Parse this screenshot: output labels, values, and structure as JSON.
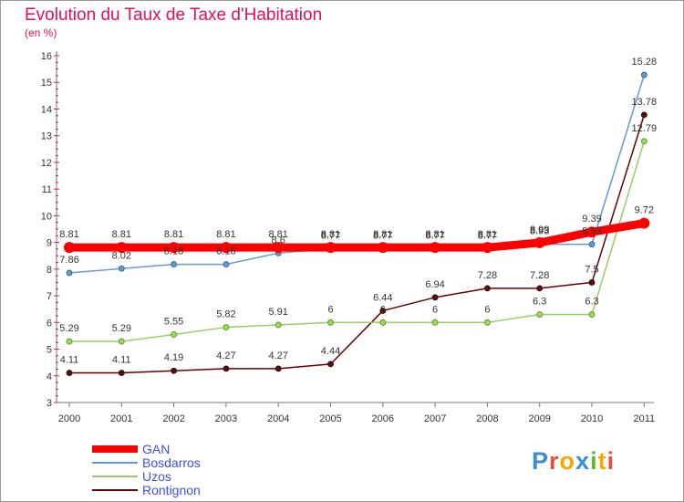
{
  "title": "Evolution du Taux de Taxe d'Habitation",
  "unit": "(en %)",
  "logo": {
    "text": "Proxiti",
    "letter_colors": [
      "#3a8fd4",
      "#e94e3a",
      "#f2a900",
      "#3a8fd4",
      "#5cb82b",
      "#f2a900",
      "#e94e3a"
    ]
  },
  "chart_data": {
    "type": "line",
    "x": [
      "2000",
      "2001",
      "2002",
      "2003",
      "2004",
      "2005",
      "2006",
      "2007",
      "2008",
      "2009",
      "2010",
      "2011"
    ],
    "y_ticks": [
      "3",
      "4",
      "5",
      "6",
      "7",
      "8",
      "9",
      "10",
      "11",
      "12",
      "13",
      "14",
      "15",
      "16"
    ],
    "ylim": [
      3,
      16
    ],
    "grid": false,
    "legend_position": "bottom-left",
    "series": [
      {
        "name": "GAN",
        "color": "#ff0000",
        "values": [
          8.81,
          8.81,
          8.81,
          8.81,
          8.81,
          8.81,
          8.81,
          8.81,
          8.81,
          8.99,
          9.39,
          9.72
        ],
        "labels": [
          "8.81",
          "8.81",
          "8.81",
          "8.81",
          "8.81",
          "8.81",
          "8.81",
          "8.81",
          "8.81",
          "8.99",
          "9.39",
          "9.72"
        ]
      },
      {
        "name": "Bosdarros",
        "color": "#6699cc",
        "values": [
          7.86,
          8.02,
          8.18,
          8.18,
          8.6,
          8.77,
          8.77,
          8.77,
          8.77,
          8.93,
          8.93,
          15.28
        ],
        "labels": [
          "7.86",
          "8.02",
          "8.18",
          "8.18",
          "8.6",
          "8.77",
          "8.77",
          "8.77",
          "8.77",
          "8.93",
          "8.93",
          "15.28"
        ]
      },
      {
        "name": "Uzos",
        "color": "#99cc66",
        "values": [
          5.29,
          5.29,
          5.55,
          5.82,
          5.91,
          6,
          6,
          6,
          6,
          6.3,
          6.3,
          12.79
        ],
        "labels": [
          "5.29",
          "5.29",
          "5.55",
          "5.82",
          "5.91",
          "6",
          "6",
          "6",
          "6",
          "6.3",
          "6.3",
          "12.79"
        ]
      },
      {
        "name": "Rontignon",
        "color": "#660000",
        "values": [
          4.11,
          4.11,
          4.19,
          4.27,
          4.27,
          4.44,
          6.44,
          6.94,
          7.28,
          7.28,
          7.5,
          13.78
        ],
        "labels": [
          "4.11",
          "4.11",
          "4.19",
          "4.27",
          "4.27",
          "4.44",
          "6.44",
          "6.94",
          "7.28",
          "7.28",
          "7.5",
          "13.78"
        ]
      }
    ]
  }
}
